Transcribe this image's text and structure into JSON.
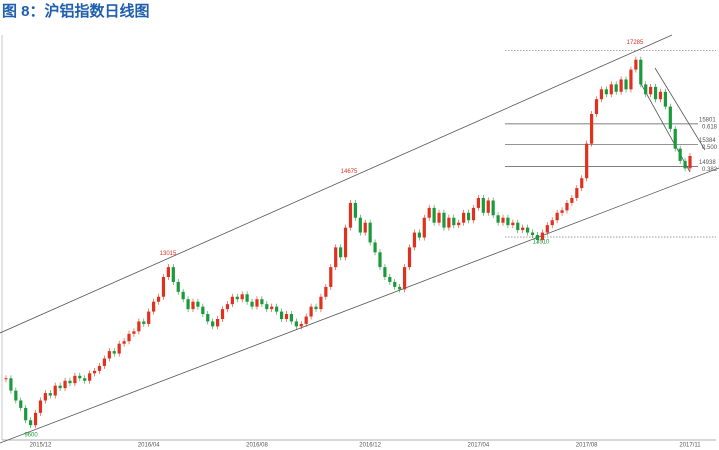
{
  "chart_data": {
    "type": "candlestick",
    "title": "图 8：沪铝指数日线图",
    "values": [
      10650,
      10400,
      10200,
      10050,
      9800,
      9700,
      9950,
      10200,
      10350,
      10300,
      10500,
      10450,
      10600,
      10550,
      10700,
      10650,
      10600,
      10750,
      10800,
      10900,
      11050,
      11200,
      11150,
      11350,
      11400,
      11550,
      11600,
      11800,
      11750,
      12000,
      12200,
      12300,
      12700,
      12900,
      12600,
      12400,
      12250,
      12050,
      12200,
      12100,
      11950,
      11800,
      11700,
      11850,
      12050,
      12150,
      12300,
      12250,
      12350,
      12200,
      12100,
      12250,
      12150,
      12050,
      12100,
      12000,
      11850,
      11950,
      11800,
      11700,
      11750,
      11900,
      12100,
      12050,
      12300,
      12500,
      12900,
      13300,
      13100,
      13700,
      14200,
      13900,
      13600,
      13800,
      13400,
      13200,
      12900,
      12700,
      12600,
      12500,
      12450,
      12900,
      13300,
      13600,
      13500,
      13900,
      14100,
      13800,
      14000,
      13700,
      13900,
      13750,
      13800,
      14000,
      13850,
      14100,
      14300,
      14000,
      14250,
      13950,
      13800,
      13900,
      13750,
      13800,
      13650,
      13700,
      13600,
      13550,
      13450,
      13600,
      13750,
      13850,
      14000,
      14050,
      14200,
      14300,
      14500,
      14700,
      15400,
      16000,
      16300,
      16500,
      16400,
      16600,
      16450,
      16700,
      16500,
      16900,
      17100,
      16600,
      16400,
      16550,
      16300,
      16450,
      16150,
      15700,
      15300,
      15050,
      14900,
      15150
    ],
    "categories": [
      null,
      null,
      null,
      null,
      null,
      null,
      null,
      "2015/12",
      null,
      null,
      null,
      null,
      null,
      null,
      null,
      null,
      null,
      null,
      null,
      null,
      null,
      null,
      null,
      null,
      null,
      null,
      null,
      null,
      null,
      "2016/04",
      null,
      null,
      null,
      null,
      null,
      null,
      null,
      null,
      null,
      null,
      null,
      null,
      null,
      null,
      null,
      null,
      null,
      null,
      null,
      null,
      null,
      "2016/08",
      null,
      null,
      null,
      null,
      null,
      null,
      null,
      null,
      null,
      null,
      null,
      null,
      null,
      null,
      null,
      null,
      null,
      null,
      null,
      null,
      null,
      null,
      "2016/12",
      null,
      null,
      null,
      null,
      null,
      null,
      null,
      null,
      null,
      null,
      null,
      null,
      null,
      null,
      null,
      null,
      null,
      null,
      null,
      null,
      null,
      "2017/04",
      null,
      null,
      null,
      null,
      null,
      null,
      null,
      null,
      null,
      null,
      null,
      null,
      null,
      null,
      null,
      null,
      null,
      null,
      null,
      null,
      null,
      "2017/08",
      null,
      null,
      null,
      null,
      null,
      null,
      null,
      null,
      null,
      null,
      null,
      null,
      null,
      null,
      null,
      null,
      null,
      null,
      null,
      null,
      "2017/11"
    ],
    "ylim": [
      9400,
      17600
    ],
    "up_color": "#e0301e",
    "down_color": "#1a9a3a",
    "high_labels": [
      13015,
      14675,
      17285
    ],
    "low_labels": [
      9600,
      13510
    ],
    "levels": [
      {
        "value": 15801,
        "ratio": "0.618"
      },
      {
        "value": 15384,
        "ratio": "0.500"
      },
      {
        "value": 14938,
        "ratio": "0.382"
      }
    ]
  }
}
